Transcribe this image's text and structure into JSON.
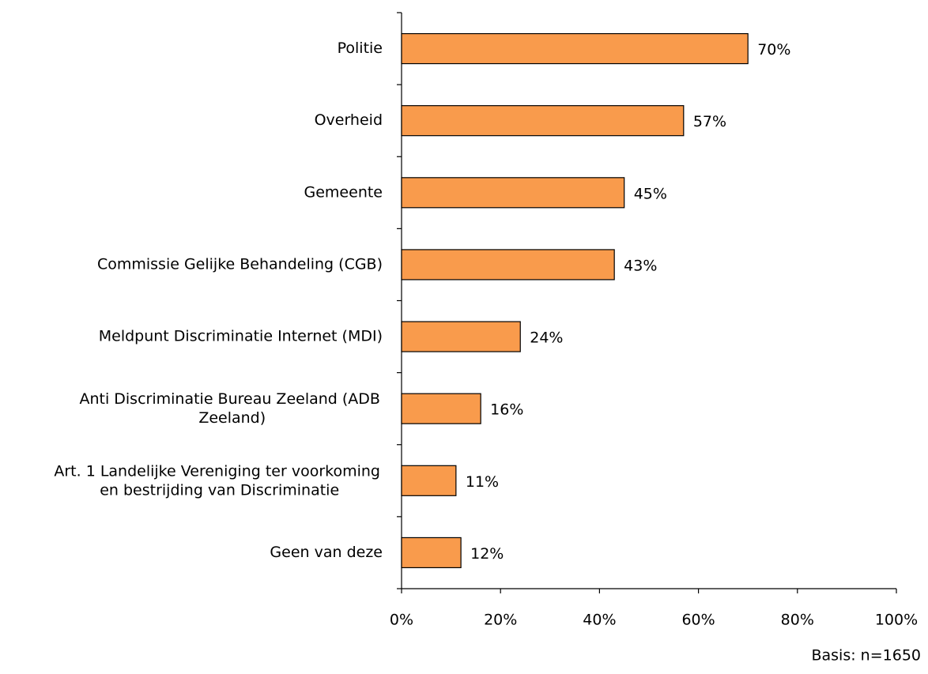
{
  "chart_data": {
    "type": "bar",
    "orientation": "horizontal",
    "categories": [
      "Politie",
      "Overheid",
      "Gemeente",
      "Commissie Gelijke Behandeling (CGB)",
      "Meldpunt Discriminatie Internet (MDI)",
      "Anti Discriminatie Bureau Zeeland (ADB Zeeland)",
      "Art. 1 Landelijke Vereniging ter voorkoming en bestrijding van Discriminatie",
      "Geen van deze"
    ],
    "values": [
      70,
      57,
      45,
      43,
      24,
      16,
      11,
      12
    ],
    "value_labels": [
      "70%",
      "57%",
      "45%",
      "43%",
      "24%",
      "16%",
      "11%",
      "12%"
    ],
    "color": "#f99b4c",
    "xlim": [
      0,
      100
    ],
    "xticks": [
      {
        "value": 0,
        "label": "0%"
      },
      {
        "value": 20,
        "label": "20%"
      },
      {
        "value": 40,
        "label": "40%"
      },
      {
        "value": 60,
        "label": "60%"
      },
      {
        "value": 80,
        "label": "80%"
      },
      {
        "value": 100,
        "label": "100%"
      }
    ],
    "annotation": "Basis: n=1650"
  }
}
